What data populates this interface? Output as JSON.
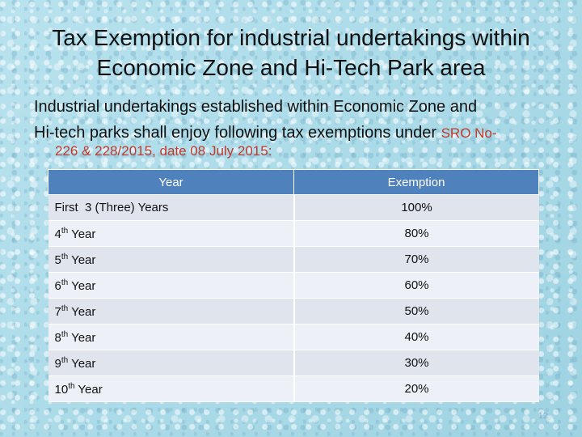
{
  "slide": {
    "title_line1": "Tax Exemption for industrial undertakings within",
    "title_line2": "Economic Zone and Hi-Tech Park area",
    "body_line1": "Industrial undertakings established within Economic Zone  and",
    "body_line2": "Hi-tech parks shall enjoy following tax exemptions under ",
    "sro_ref": "SRO No-",
    "sro_ref_cont": "226 & 228/2015, date 08 July  2015:",
    "page_number": "12"
  },
  "table": {
    "headers": [
      "Year",
      "Exemption"
    ],
    "rows": [
      {
        "num": "",
        "sup": "",
        "text": "First  3 (Three) Years",
        "exemption": "100%"
      },
      {
        "num": "4",
        "sup": "th",
        "text": " Year",
        "exemption": "80%"
      },
      {
        "num": "5",
        "sup": "th",
        "text": " Year",
        "exemption": "70%"
      },
      {
        "num": "6",
        "sup": "th",
        "text": " Year",
        "exemption": "60%"
      },
      {
        "num": "7",
        "sup": "th",
        "text": " Year",
        "exemption": "50%"
      },
      {
        "num": "8",
        "sup": "th",
        "text": " Year",
        "exemption": "40%"
      },
      {
        "num": "9",
        "sup": "th",
        "text": " Year",
        "exemption": "30%"
      },
      {
        "num": "10",
        "sup": "th",
        "text": " Year",
        "exemption": "20%"
      }
    ]
  },
  "colors": {
    "header_bg": "#4f81bd",
    "ref_text": "#c0392b",
    "background": "#a9d9e6"
  }
}
